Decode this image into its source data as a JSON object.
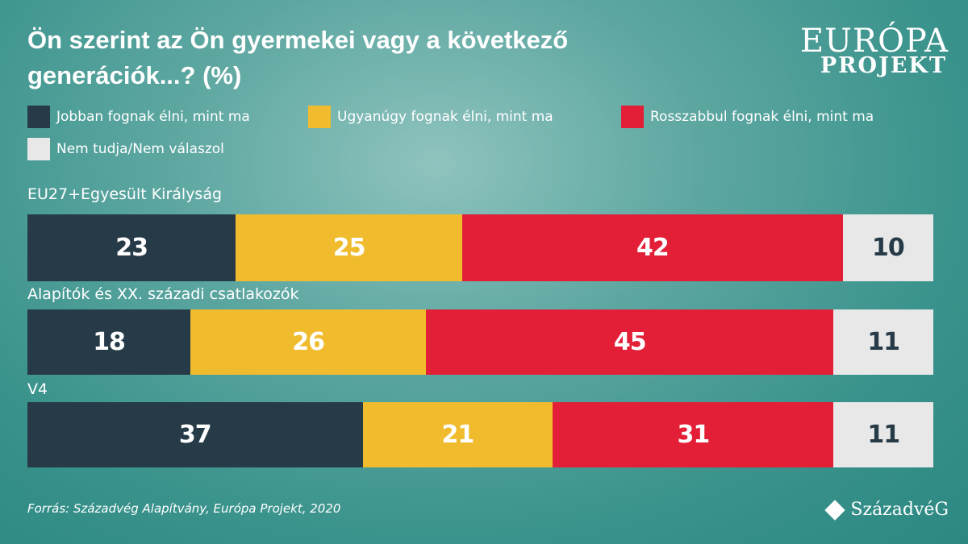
{
  "logo": {
    "line1": "EURÓPA",
    "line2": "PROJEKT"
  },
  "brand": "SzázadvéG",
  "source": "Forrás: Századvég Alapítvány, Európa Projekt, 2020",
  "chart_data": {
    "type": "bar",
    "stacked": true,
    "orientation": "horizontal",
    "title": "Ön szerint az Ön gyermekei vagy a következő generációk...? (%)",
    "categories": [
      "EU27+Egyesült Királyság",
      "Alapítók és XX. századi csatlakozók",
      "V4"
    ],
    "series": [
      {
        "name": "Jobban fognak élni, mint ma",
        "color": "#263a47",
        "text": "#ffffff",
        "values": [
          23,
          18,
          37
        ]
      },
      {
        "name": "Ugyanúgy fognak élni, mint ma",
        "color": "#f0bc2e",
        "text": "#ffffff",
        "values": [
          25,
          26,
          21
        ]
      },
      {
        "name": "Rosszabbul fognak élni, mint ma",
        "color": "#e21f37",
        "text": "#ffffff",
        "values": [
          42,
          45,
          31
        ]
      },
      {
        "name": "Nem tudja/Nem válaszol",
        "color": "#e8e8e8",
        "text": "#263a47",
        "values": [
          10,
          11,
          11
        ]
      }
    ],
    "xlim": [
      0,
      100
    ],
    "legend": "top"
  }
}
